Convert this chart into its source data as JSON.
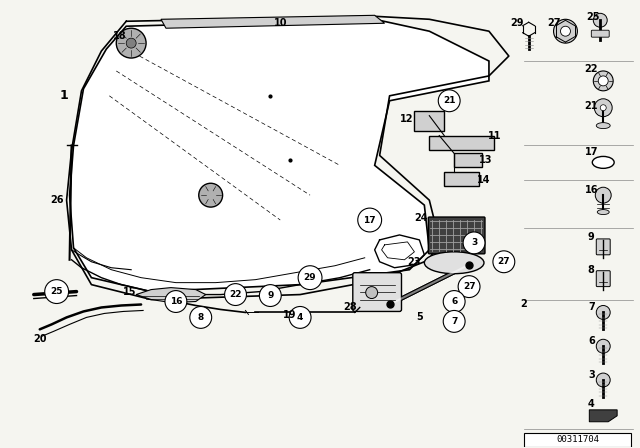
{
  "bg_color": "#f5f5f0",
  "diagram_id": "00311704",
  "fig_width": 6.4,
  "fig_height": 4.48,
  "hood_color": "#000000",
  "lw": 1.0
}
